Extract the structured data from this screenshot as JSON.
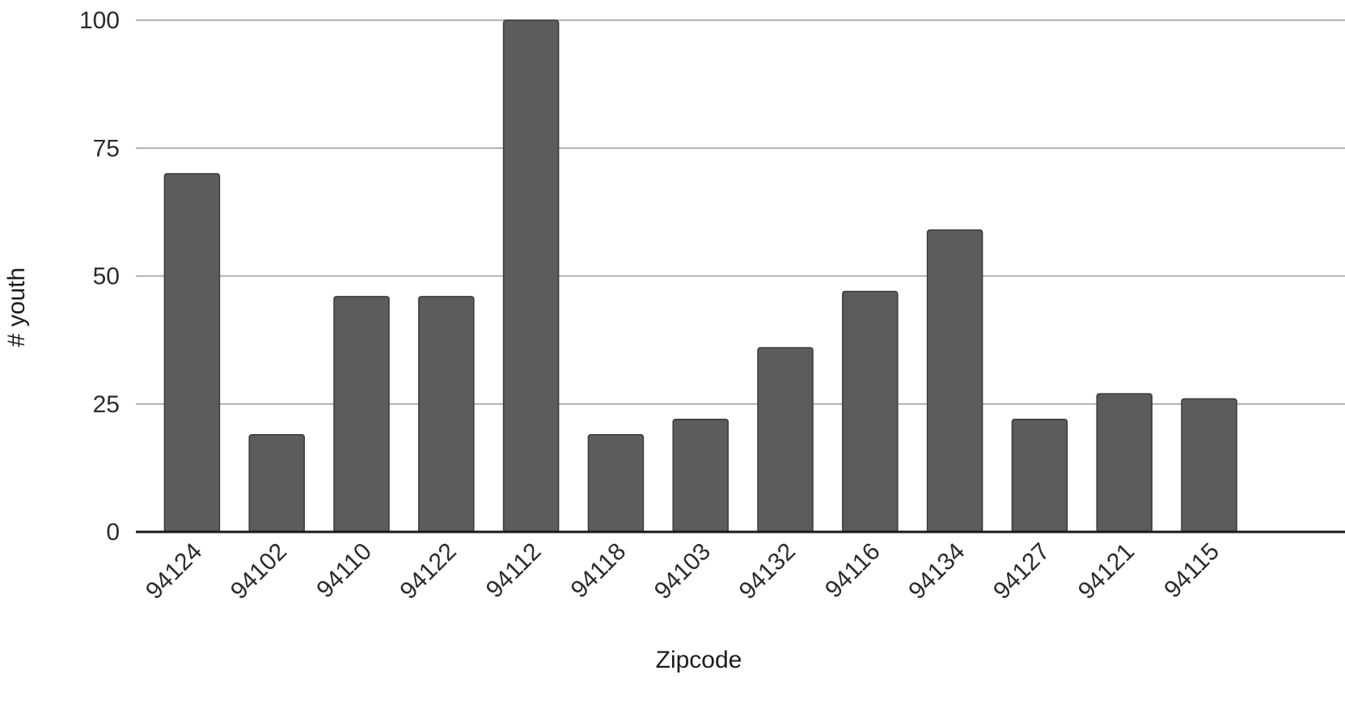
{
  "chart_data": {
    "type": "bar",
    "title": "",
    "xlabel": "Zipcode",
    "ylabel": "# youth",
    "categories": [
      "94124",
      "94102",
      "94110",
      "94122",
      "94112",
      "94118",
      "94103",
      "94132",
      "94116",
      "94134",
      "94127",
      "94121",
      "94115"
    ],
    "values": [
      70,
      19,
      46,
      46,
      100,
      19,
      22,
      36,
      47,
      59,
      22,
      27,
      26
    ],
    "ylim": [
      0,
      100
    ],
    "yticks": [
      0,
      25,
      50,
      75,
      100
    ],
    "grid": true,
    "legend": "none",
    "colors": {
      "bar": "#5c5c5c",
      "bar_edge": "#3a3a3a",
      "grid": "#9a9a9a",
      "axis": "#1a1a1a",
      "text": "#2b2b2b"
    }
  }
}
